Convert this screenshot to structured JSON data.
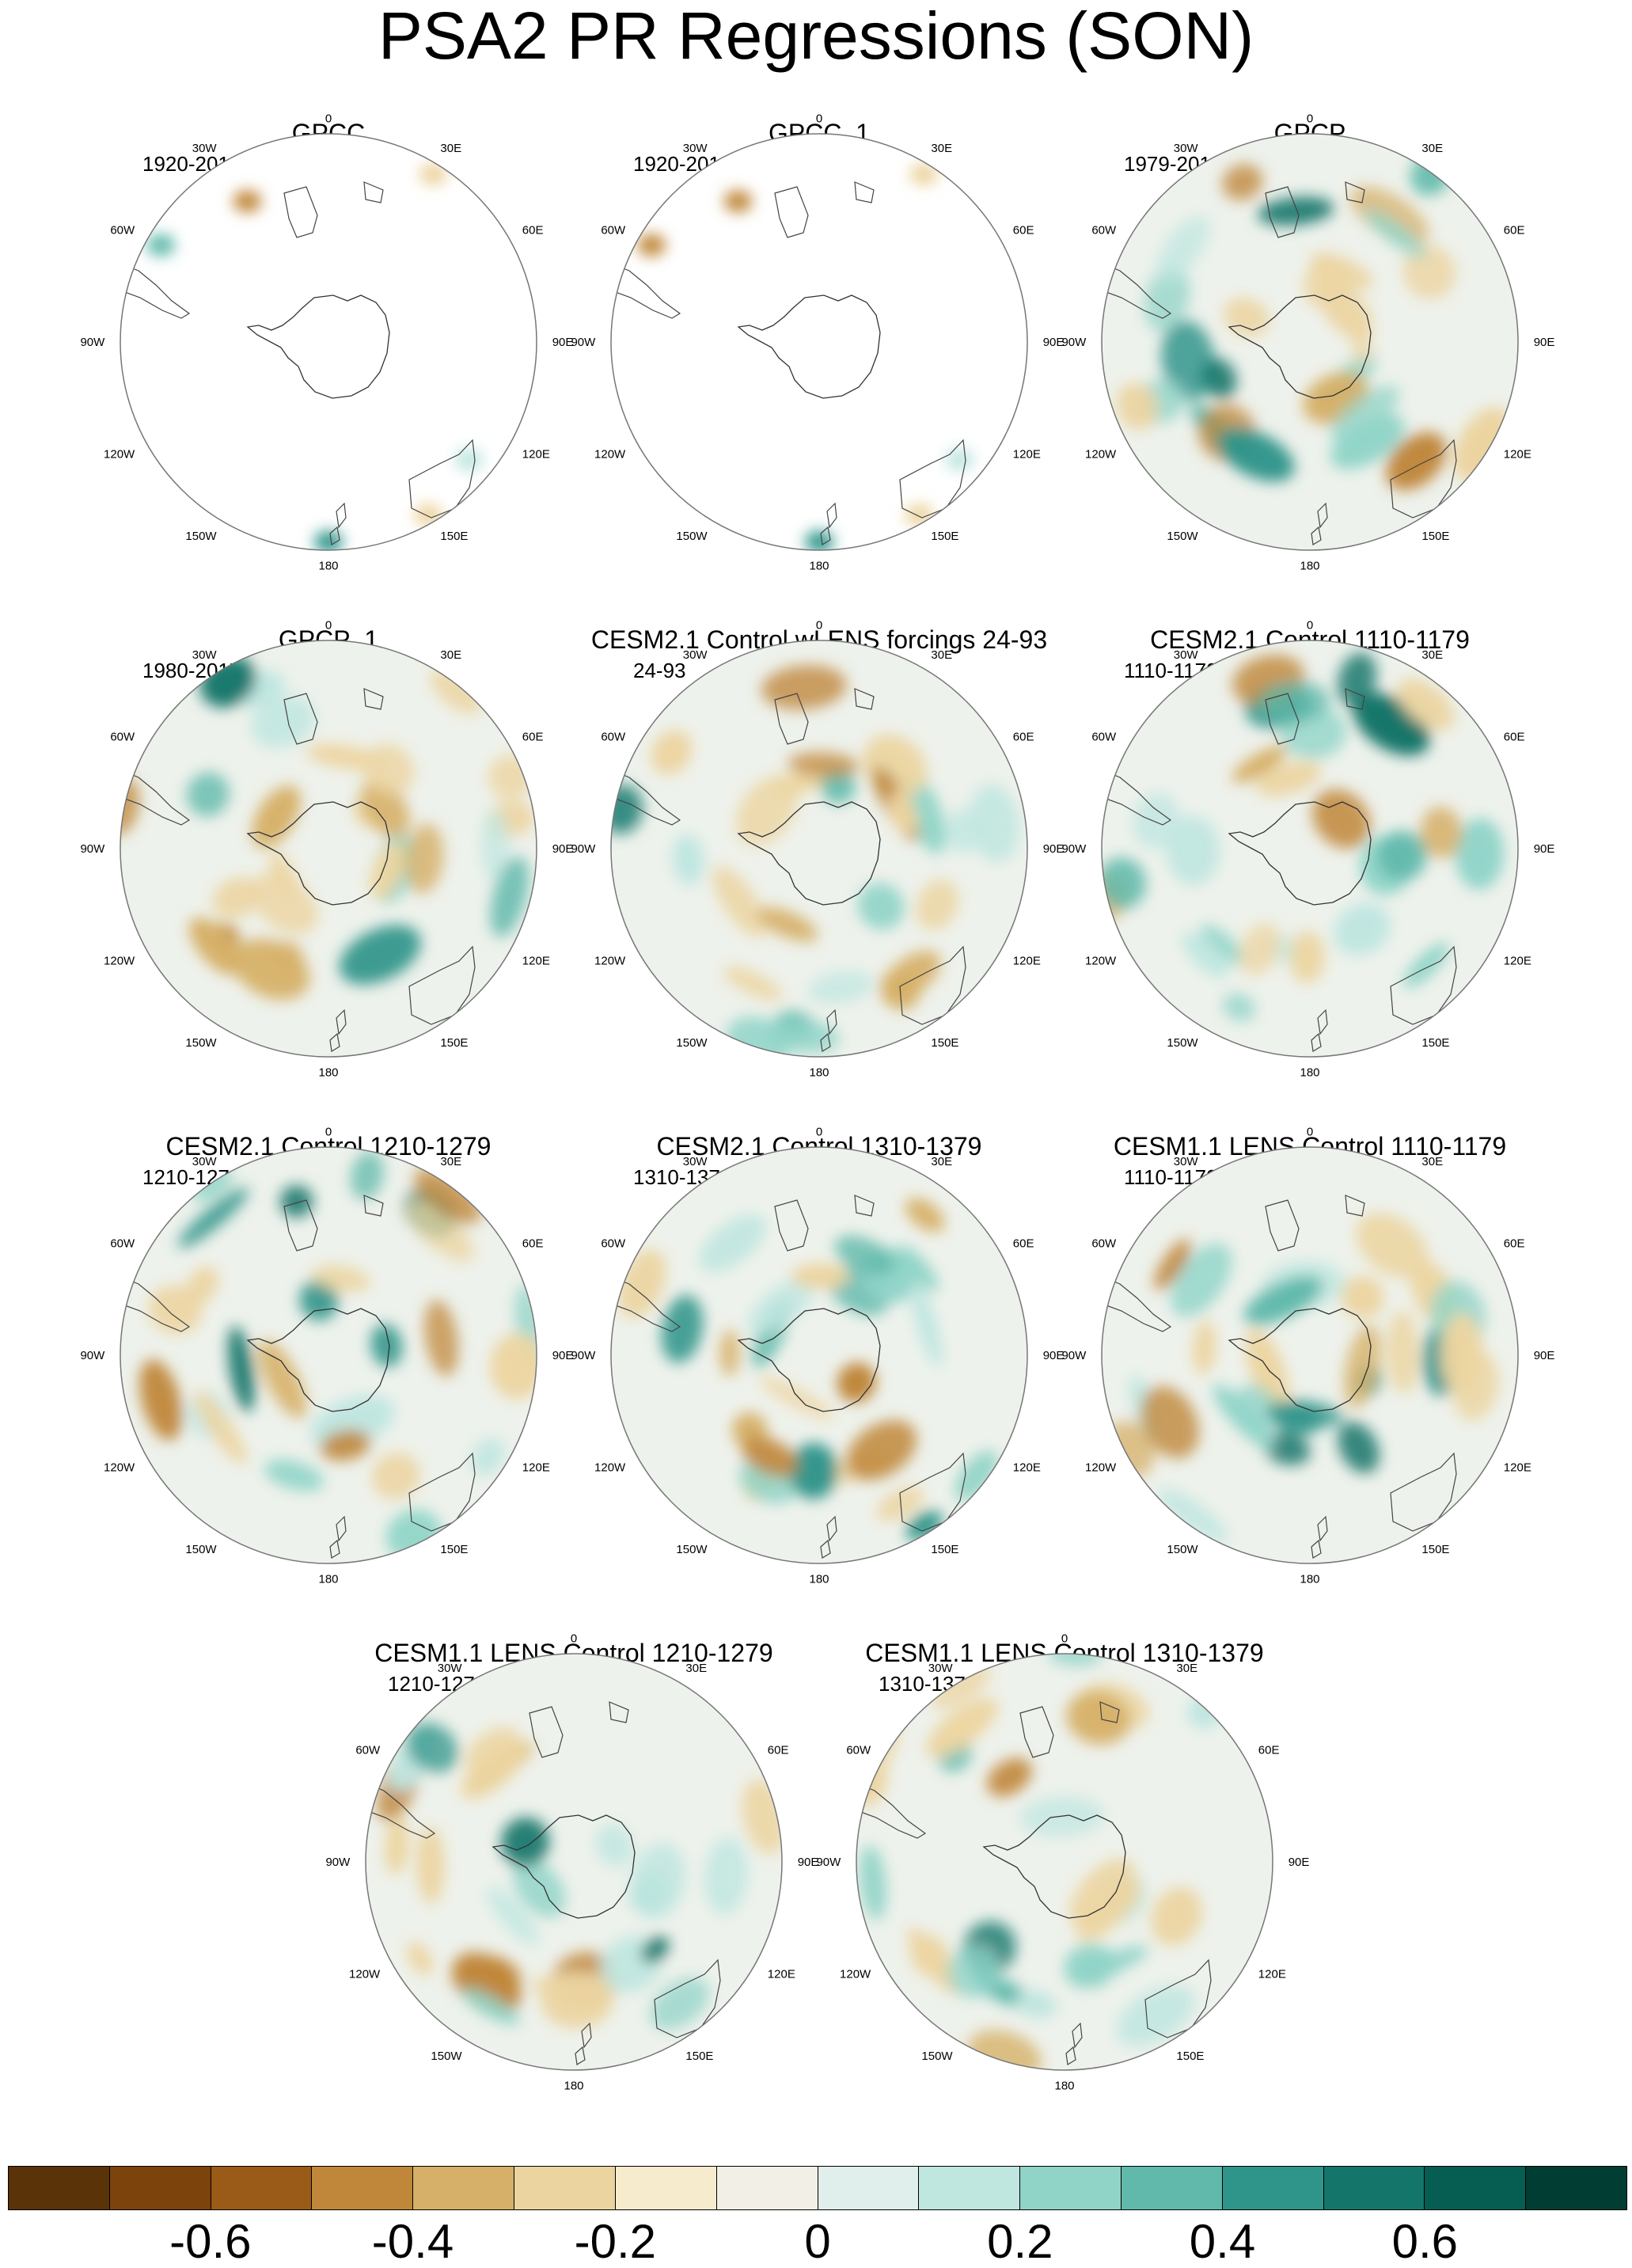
{
  "title": "PSA2 PR Regressions (SON)",
  "tick_labels": [
    "0",
    "30E",
    "60E",
    "90E",
    "120E",
    "150E",
    "180",
    "150W",
    "120W",
    "90W",
    "60W",
    "30W"
  ],
  "panels": [
    {
      "title": "GPCC",
      "period": "1920-2018",
      "coverage": "land-only"
    },
    {
      "title": "GPCC_1",
      "period": "1920-2018",
      "coverage": "land-only"
    },
    {
      "title": "GPCP",
      "period": "1979-2018",
      "coverage": "full"
    },
    {
      "title": "GPCP_1",
      "period": "1980-2017",
      "coverage": "full"
    },
    {
      "title": "CESM2.1 Control wLENS forcings 24-93",
      "period": "24-93",
      "coverage": "full"
    },
    {
      "title": "CESM2.1 Control 1110-1179",
      "period": "1110-1179",
      "coverage": "full"
    },
    {
      "title": "CESM2.1 Control 1210-1279",
      "period": "1210-1279",
      "coverage": "full"
    },
    {
      "title": "CESM2.1 Control 1310-1379",
      "period": "1310-1379",
      "coverage": "full"
    },
    {
      "title": "CESM1.1 LENS Control 1110-1179",
      "period": "1110-1179",
      "coverage": "full"
    },
    {
      "title": "CESM1.1 LENS Control 1210-1279",
      "period": "1210-1279",
      "coverage": "full"
    },
    {
      "title": "CESM1.1 LENS Control 1310-1379",
      "period": "1310-1379",
      "coverage": "full"
    }
  ],
  "colorbar": {
    "colors": [
      "#5a3308",
      "#7c430d",
      "#9a5b18",
      "#c0873a",
      "#d6b068",
      "#ecd4a0",
      "#f6ebcc",
      "#f2f0e6",
      "#e0eeec",
      "#c0e6e0",
      "#90d4c8",
      "#60b9ab",
      "#2f948a",
      "#14766b",
      "#065e52",
      "#023d33"
    ],
    "labels": [
      "-0.6",
      "-0.4",
      "-0.2",
      "0",
      "0.2",
      "0.4",
      "0.6"
    ]
  }
}
